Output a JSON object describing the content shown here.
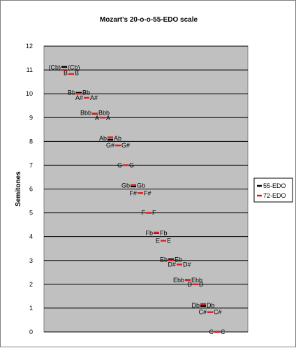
{
  "chart_data": {
    "type": "scatter",
    "title": "Mozart's 20-o-o-55-EDO scale",
    "xlabel": "",
    "ylabel": "Semitones",
    "ylim": [
      0,
      12
    ],
    "yticks": [
      "0",
      "1",
      "2",
      "3",
      "4",
      "5",
      "6",
      "7",
      "8",
      "9",
      "10",
      "11",
      "12"
    ],
    "grid": true,
    "legend_position": "right",
    "series": [
      {
        "name": "55-EDO",
        "color": "#000000",
        "values": [
          {
            "note": "C",
            "y": 0.0
          },
          {
            "note": "Db",
            "y": 1.09
          },
          {
            "note": "Ebb",
            "y": 2.18
          },
          {
            "note": "Eb",
            "y": 3.05
          },
          {
            "note": "Fb",
            "y": 4.15
          },
          {
            "note": "Gb",
            "y": 6.11
          },
          {
            "note": "Ab",
            "y": 8.07
          },
          {
            "note": "Bbb",
            "y": 9.16
          },
          {
            "note": "Bb",
            "y": 10.04
          },
          {
            "note": "(Cb)",
            "y": 11.13
          }
        ]
      },
      {
        "name": "72-EDO",
        "color": "#e02020",
        "values": [
          {
            "note": "C",
            "y": 0.0
          },
          {
            "note": "C#",
            "y": 0.83
          },
          {
            "note": "Db",
            "y": 1.17
          },
          {
            "note": "D",
            "y": 2.0
          },
          {
            "note": "Ebb",
            "y": 2.17
          },
          {
            "note": "D#",
            "y": 2.83
          },
          {
            "note": "Eb",
            "y": 3.0
          },
          {
            "note": "E",
            "y": 3.83
          },
          {
            "note": "Fb",
            "y": 4.17
          },
          {
            "note": "F",
            "y": 5.0
          },
          {
            "note": "F#",
            "y": 5.83
          },
          {
            "note": "Gb",
            "y": 6.17
          },
          {
            "note": "G",
            "y": 7.0
          },
          {
            "note": "G#",
            "y": 7.83
          },
          {
            "note": "Ab",
            "y": 8.17
          },
          {
            "note": "A",
            "y": 9.0
          },
          {
            "note": "Bbb",
            "y": 9.17
          },
          {
            "note": "A#",
            "y": 9.83
          },
          {
            "note": "Bb",
            "y": 10.0
          },
          {
            "note": "B",
            "y": 10.83
          },
          {
            "note": "(Cb)",
            "y": 11.0
          }
        ]
      }
    ],
    "annotations": [
      {
        "label": "C",
        "y": 0.0,
        "side": "left"
      },
      {
        "label": "C",
        "y": 0.0,
        "side": "right"
      },
      {
        "label": "C#",
        "y": 0.83,
        "side": "left"
      },
      {
        "label": "C#",
        "y": 0.83,
        "side": "right"
      },
      {
        "label": "Db",
        "y": 1.12,
        "side": "left"
      },
      {
        "label": "Db",
        "y": 1.12,
        "side": "right"
      },
      {
        "label": "D",
        "y": 2.0,
        "side": "left"
      },
      {
        "label": "D",
        "y": 2.0,
        "side": "right"
      },
      {
        "label": "Ebb",
        "y": 2.17,
        "side": "left"
      },
      {
        "label": "Ebb",
        "y": 2.17,
        "side": "right"
      },
      {
        "label": "D#",
        "y": 2.83,
        "side": "left"
      },
      {
        "label": "D#",
        "y": 2.83,
        "side": "right"
      },
      {
        "label": "Eb",
        "y": 3.03,
        "side": "left"
      },
      {
        "label": "Eb",
        "y": 3.03,
        "side": "right"
      },
      {
        "label": "E",
        "y": 3.83,
        "side": "left"
      },
      {
        "label": "E",
        "y": 3.83,
        "side": "right"
      },
      {
        "label": "Fb",
        "y": 4.15,
        "side": "left"
      },
      {
        "label": "Fb",
        "y": 4.15,
        "side": "right"
      },
      {
        "label": "F",
        "y": 5.0,
        "side": "left"
      },
      {
        "label": "F",
        "y": 5.0,
        "side": "right"
      },
      {
        "label": "F#",
        "y": 5.83,
        "side": "left"
      },
      {
        "label": "F#",
        "y": 5.83,
        "side": "right"
      },
      {
        "label": "Gb",
        "y": 6.14,
        "side": "left"
      },
      {
        "label": "Gb",
        "y": 6.14,
        "side": "right"
      },
      {
        "label": "G",
        "y": 7.0,
        "side": "left"
      },
      {
        "label": "G",
        "y": 7.0,
        "side": "right"
      },
      {
        "label": "G#",
        "y": 7.83,
        "side": "left"
      },
      {
        "label": "G#",
        "y": 7.83,
        "side": "right"
      },
      {
        "label": "Ab",
        "y": 8.12,
        "side": "left"
      },
      {
        "label": "Ab",
        "y": 8.12,
        "side": "right"
      },
      {
        "label": "A",
        "y": 8.98,
        "side": "left"
      },
      {
        "label": "A",
        "y": 8.98,
        "side": "right"
      },
      {
        "label": "Bbb",
        "y": 9.2,
        "side": "left"
      },
      {
        "label": "Bbb",
        "y": 9.2,
        "side": "right"
      },
      {
        "label": "A#",
        "y": 9.83,
        "side": "left"
      },
      {
        "label": "A#",
        "y": 9.83,
        "side": "right"
      },
      {
        "label": "Bb",
        "y": 10.05,
        "side": "left"
      },
      {
        "label": "Bb",
        "y": 10.05,
        "side": "right"
      },
      {
        "label": "B",
        "y": 10.87,
        "side": "left"
      },
      {
        "label": "B",
        "y": 10.87,
        "side": "right"
      },
      {
        "label": "(Cb)",
        "y": 11.1,
        "side": "left"
      },
      {
        "label": "(Cb)",
        "y": 11.1,
        "side": "right"
      }
    ]
  }
}
